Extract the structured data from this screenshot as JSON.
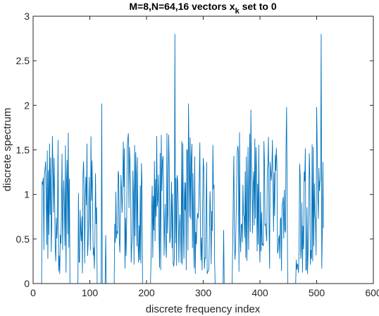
{
  "chart_data": {
    "type": "line",
    "title_main": "M=8,N=64,16 vectors x",
    "title_sub": "k",
    "title_tail": " set to 0",
    "xlabel": "discrete frequency index",
    "ylabel": "discrete spectrum",
    "xlim": [
      0,
      600
    ],
    "ylim": [
      0,
      3
    ],
    "xticks": [
      "0",
      "100",
      "200",
      "300",
      "400",
      "500",
      "600"
    ],
    "yticks": [
      "0",
      "0.5",
      "1",
      "1.5",
      "2",
      "2.5",
      "3"
    ],
    "grid": false,
    "series": [
      {
        "color": "#0072bd",
        "x_start": 1,
        "zero_ranges": [
          [
            1,
            15
          ],
          [
            65,
            79
          ],
          [
            113,
            127
          ],
          [
            129,
            143
          ],
          [
            193,
            207
          ],
          [
            321,
            335
          ],
          [
            337,
            351
          ],
          [
            449,
            463
          ]
        ],
        "peaks": [
          [
            250,
            2.8
          ],
          [
            508,
            2.8
          ],
          [
            274,
            2.02
          ],
          [
            121,
            2.02
          ],
          [
            384,
            1.95
          ],
          [
            447,
            1.98
          ],
          [
            500,
            1.98
          ]
        ],
        "base_range": [
          0.1,
          1.7
        ],
        "length": 512
      }
    ]
  }
}
